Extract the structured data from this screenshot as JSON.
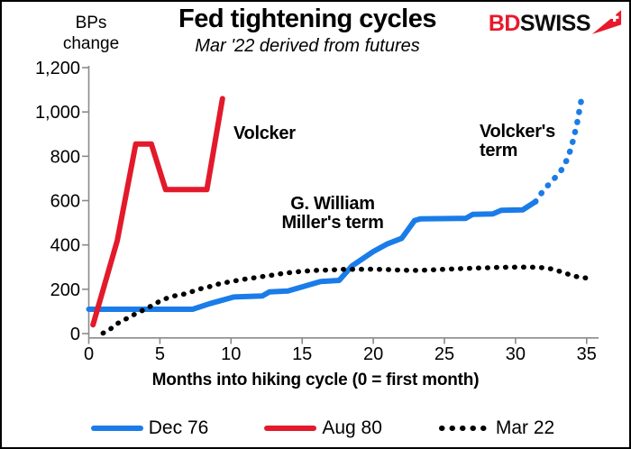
{
  "header": {
    "ylabel": "BPs change",
    "title": "Fed tightening cycles",
    "subtitle": "Mar '22 derived from futures",
    "logo": {
      "part1": "BD",
      "part2": "SWISS",
      "arrow_icon": "swiss-cross-arrow-icon",
      "accent_color": "#e8192c"
    }
  },
  "annotations": {
    "volcker": "Volcker",
    "miller": "G. William Miller's term",
    "volcker_term": "Volcker's term"
  },
  "legend": {
    "items": [
      {
        "label": "Dec 76",
        "color": "#1a7ce8",
        "style": "solid"
      },
      {
        "label": "Aug 80",
        "color": "#e21a2c",
        "style": "solid"
      },
      {
        "label": "Mar 22",
        "color": "#000000",
        "style": "dotted"
      }
    ]
  },
  "chart_data": {
    "type": "line",
    "title": "Fed tightening cycles",
    "subtitle": "Mar '22 derived from futures",
    "xlabel": "Months into hiking cycle (0 = first month)",
    "ylabel": "BPs change",
    "xlim": [
      0,
      35
    ],
    "ylim": [
      0,
      1200
    ],
    "xticks": [
      0,
      5,
      10,
      15,
      20,
      25,
      30,
      35
    ],
    "yticks": [
      0,
      200,
      400,
      600,
      800,
      1000,
      1200
    ],
    "ytick_labels": [
      "0",
      "200",
      "400",
      "600",
      "800",
      "1,000",
      "1,200"
    ],
    "grid": false,
    "legend_position": "bottom",
    "axis_color": "#8a8a8a",
    "series": [
      {
        "name": "Dec 76",
        "color": "#1a7ce8",
        "style": "solid",
        "points": [
          [
            0,
            110
          ],
          [
            7.3,
            110
          ],
          [
            8.5,
            135
          ],
          [
            10.2,
            165
          ],
          [
            12.2,
            170
          ],
          [
            12.7,
            188
          ],
          [
            14,
            192
          ],
          [
            16.3,
            235
          ],
          [
            17.6,
            240
          ],
          [
            18.5,
            305
          ],
          [
            20,
            370
          ],
          [
            21,
            405
          ],
          [
            22,
            430
          ],
          [
            22.9,
            510
          ],
          [
            23.3,
            518
          ],
          [
            26.5,
            520
          ],
          [
            27,
            538
          ],
          [
            28.4,
            540
          ],
          [
            29,
            556
          ],
          [
            30.5,
            558
          ],
          [
            31.4,
            595
          ]
        ]
      },
      {
        "name": "Dec 76 (projected, dotted)",
        "color": "#1a7ce8",
        "style": "dotted",
        "points": [
          [
            31.4,
            595
          ],
          [
            32,
            650
          ],
          [
            32.6,
            690
          ],
          [
            33.2,
            735
          ],
          [
            33.7,
            795
          ],
          [
            34,
            860
          ],
          [
            34.3,
            940
          ],
          [
            34.5,
            1010
          ],
          [
            34.7,
            1080
          ]
        ]
      },
      {
        "name": "Aug 80",
        "color": "#e21a2c",
        "style": "solid",
        "points": [
          [
            0.3,
            40
          ],
          [
            2,
            420
          ],
          [
            3.3,
            855
          ],
          [
            4.4,
            855
          ],
          [
            5.4,
            650
          ],
          [
            8.3,
            650
          ],
          [
            9.4,
            1060
          ]
        ]
      },
      {
        "name": "Mar 22",
        "color": "#000000",
        "style": "dotted",
        "points": [
          [
            1,
            2
          ],
          [
            1.5,
            20
          ],
          [
            2,
            45
          ],
          [
            2.5,
            62
          ],
          [
            3,
            80
          ],
          [
            3.5,
            95
          ],
          [
            4,
            112
          ],
          [
            4.5,
            128
          ],
          [
            5,
            147
          ],
          [
            5.5,
            160
          ],
          [
            6,
            170
          ],
          [
            6.5,
            175
          ],
          [
            7,
            184
          ],
          [
            7.5,
            195
          ],
          [
            8,
            205
          ],
          [
            8.5,
            212
          ],
          [
            9,
            222
          ],
          [
            9.5,
            228
          ],
          [
            10,
            236
          ],
          [
            10.5,
            240
          ],
          [
            11,
            246
          ],
          [
            11.5,
            250
          ],
          [
            12,
            256
          ],
          [
            12.5,
            260
          ],
          [
            13,
            265
          ],
          [
            13.5,
            270
          ],
          [
            14,
            274
          ],
          [
            14.5,
            278
          ],
          [
            15,
            281
          ],
          [
            15.5,
            283
          ],
          [
            16,
            285
          ],
          [
            17,
            287
          ],
          [
            18,
            290
          ],
          [
            19,
            290
          ],
          [
            20,
            291
          ],
          [
            21,
            289
          ],
          [
            22,
            286
          ],
          [
            23,
            285
          ],
          [
            24,
            287
          ],
          [
            25,
            290
          ],
          [
            26,
            293
          ],
          [
            27,
            295
          ],
          [
            28,
            297
          ],
          [
            29,
            299
          ],
          [
            30,
            300
          ],
          [
            31,
            300
          ],
          [
            31.5,
            299
          ],
          [
            32,
            297
          ],
          [
            32.5,
            292
          ],
          [
            33,
            283
          ],
          [
            33.5,
            272
          ],
          [
            34,
            262
          ],
          [
            34.5,
            254
          ],
          [
            35.1,
            250
          ]
        ]
      }
    ]
  }
}
